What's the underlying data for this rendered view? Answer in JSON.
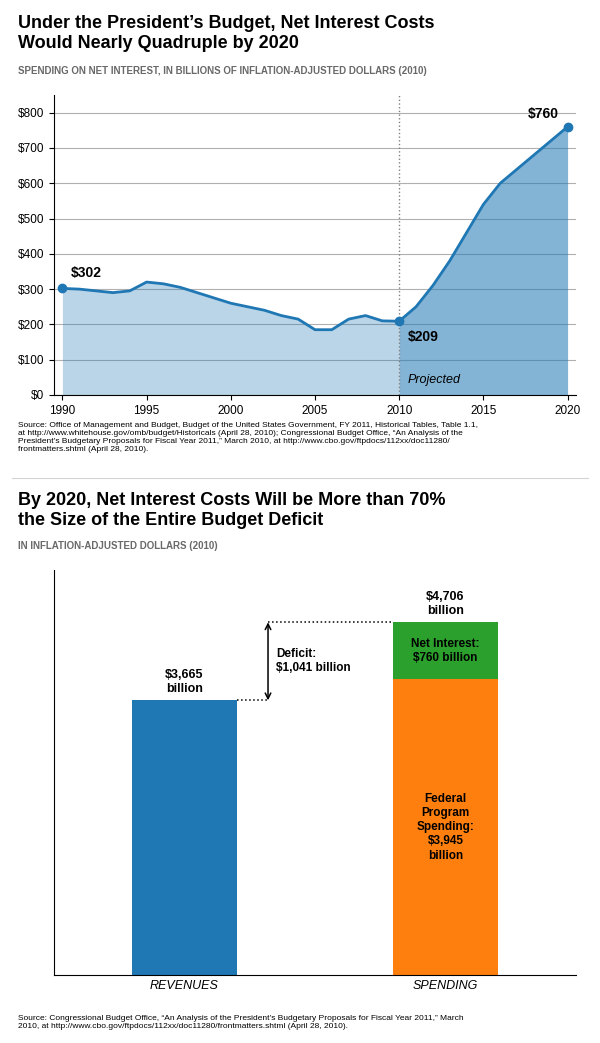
{
  "chart_data": [
    {
      "type": "line",
      "title": "Under the President’s Budget, Net Interest Costs\nWould Nearly Quadruple by 2020",
      "subtitle": "SPENDING ON NET INTEREST, IN BILLIONS OF INFLATION-ADJUSTED DOLLARS (2010)",
      "x": [
        1990,
        1991,
        1992,
        1993,
        1994,
        1995,
        1996,
        1997,
        1998,
        1999,
        2000,
        2001,
        2002,
        2003,
        2004,
        2005,
        2006,
        2007,
        2008,
        2009,
        2010,
        2011,
        2012,
        2013,
        2014,
        2015,
        2016,
        2017,
        2018,
        2019,
        2020
      ],
      "values": [
        302,
        300,
        295,
        290,
        295,
        320,
        315,
        305,
        290,
        275,
        260,
        250,
        240,
        225,
        215,
        185,
        185,
        215,
        225,
        210,
        209,
        250,
        310,
        380,
        460,
        540,
        600,
        640,
        680,
        720,
        760
      ],
      "projection_start": 2010,
      "region_label": "Projected",
      "annotations": [
        {
          "text": "$302",
          "x": 1990,
          "y": 302
        },
        {
          "text": "$209",
          "x": 2010,
          "y": 209
        },
        {
          "text": "$760",
          "x": 2020,
          "y": 760
        }
      ],
      "xlim": [
        1989.5,
        2020.5
      ],
      "xticks": [
        1990,
        1995,
        2000,
        2005,
        2010,
        2015,
        2020
      ],
      "ylim": [
        0,
        850
      ],
      "yticks": [
        {
          "value": 0,
          "label": "$0"
        },
        {
          "value": 100,
          "label": "$100"
        },
        {
          "value": 200,
          "label": "$200"
        },
        {
          "value": 300,
          "label": "$300"
        },
        {
          "value": 400,
          "label": "$400"
        },
        {
          "value": 500,
          "label": "$500"
        },
        {
          "value": 600,
          "label": "$600"
        },
        {
          "value": 700,
          "label": "$700"
        },
        {
          "value": 800,
          "label": "$800"
        }
      ],
      "grid": true,
      "source": "Source: Office of Management and Budget, Budget of the United States Government, FY 2011, Historical Tables, Table 1.1,\nat http://www.whitehouse.gov/omb/budget/Historicals (April 28, 2010); Congressional Budget Office, “An Analysis of the\nPresident’s Budgetary Proposals for Fiscal Year 2011,” March 2010, at http://www.cbo.gov/ftpdocs/112xx/doc11280/\nfrontmatters.shtml (April 28, 2010)."
    },
    {
      "type": "bar",
      "stacked": true,
      "title": "By 2020, Net Interest Costs Will be More than 70%\nthe Size of the Entire Budget Deficit",
      "subtitle": "IN INFLATION-ADJUSTED DOLLARS (2010)",
      "categories": [
        "REVENUES",
        "SPENDING"
      ],
      "series": [
        {
          "values": [
            3665,
            null
          ]
        },
        {
          "values": [
            null,
            3945
          ],
          "value_labels": [
            null,
            "Federal\nProgram\nSpending:\n$3,945\nbillion"
          ]
        },
        {
          "values": [
            null,
            760
          ],
          "value_labels": [
            null,
            "Net Interest:\n$760 billion"
          ]
        }
      ],
      "totals": [
        3665,
        4706
      ],
      "total_labels": [
        "$3,665\nbillion",
        "$4,706\nbillion"
      ],
      "bracket": {
        "low": 3665,
        "high": 4706,
        "label": "Deficit:\n$1,041 billion"
      },
      "data_labels": true,
      "ylim": [
        0,
        5400
      ],
      "yticks": [],
      "tick_labels": "x",
      "grid": false,
      "source": "Source: Congressional Budget Office, “An Analysis of the President’s Budgetary Proposals for Fiscal Year 2011,” March\n2010, at http://www.cbo.gov/ftpdocs/112xx/doc11280/frontmatters.shtml (April 28, 2010)."
    }
  ]
}
